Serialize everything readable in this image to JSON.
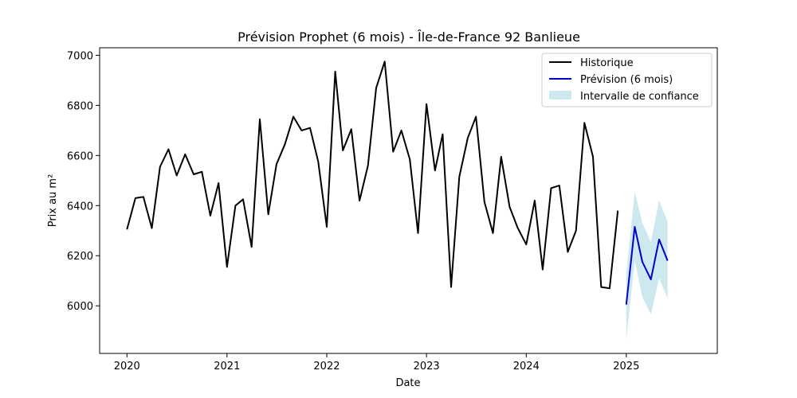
{
  "chart_data": {
    "type": "line",
    "title": "Prévision Prophet (6 mois) - Île-de-France 92 Banlieue",
    "xlabel": "Date",
    "ylabel": "Prix au m²",
    "xlim": [
      "2019-09-23",
      "2025-11-30"
    ],
    "ylim": [
      5810,
      7030
    ],
    "x_ticks": [
      "2020",
      "2021",
      "2022",
      "2023",
      "2024",
      "2025"
    ],
    "y_ticks": [
      6000,
      6200,
      6400,
      6600,
      6800,
      7000
    ],
    "grid": false,
    "legend_position": "top-right",
    "legend": [
      "Historique",
      "Prévision (6 mois)",
      "Intervalle de confiance"
    ],
    "colors": {
      "historique": "#000000",
      "prevision": "#0000cc",
      "intervalle": "#add8e6"
    },
    "series": [
      {
        "name": "Historique",
        "x": [
          "2020-01-01",
          "2020-02-01",
          "2020-03-01",
          "2020-04-01",
          "2020-05-01",
          "2020-06-01",
          "2020-07-01",
          "2020-08-01",
          "2020-09-01",
          "2020-10-01",
          "2020-11-01",
          "2020-12-01",
          "2021-01-01",
          "2021-02-01",
          "2021-03-01",
          "2021-04-01",
          "2021-05-01",
          "2021-06-01",
          "2021-07-01",
          "2021-08-01",
          "2021-09-01",
          "2021-10-01",
          "2021-11-01",
          "2021-12-01",
          "2022-01-01",
          "2022-02-01",
          "2022-03-01",
          "2022-04-01",
          "2022-05-01",
          "2022-06-01",
          "2022-07-01",
          "2022-08-01",
          "2022-09-01",
          "2022-10-01",
          "2022-11-01",
          "2022-12-01",
          "2023-01-01",
          "2023-02-01",
          "2023-03-01",
          "2023-04-01",
          "2023-05-01",
          "2023-06-01",
          "2023-07-01",
          "2023-08-01",
          "2023-09-01",
          "2023-10-01",
          "2023-11-01",
          "2023-12-01",
          "2024-01-01",
          "2024-02-01",
          "2024-03-01",
          "2024-04-01",
          "2024-05-01",
          "2024-06-01",
          "2024-07-01",
          "2024-08-01",
          "2024-09-01",
          "2024-10-01",
          "2024-11-01",
          "2024-12-01"
        ],
        "values": [
          6305,
          6430,
          6435,
          6310,
          6555,
          6625,
          6520,
          6605,
          6525,
          6535,
          6360,
          6490,
          6155,
          6400,
          6425,
          6235,
          6745,
          6365,
          6565,
          6645,
          6755,
          6700,
          6710,
          6575,
          6315,
          6935,
          6620,
          6705,
          6420,
          6560,
          6870,
          6975,
          6615,
          6700,
          6585,
          6290,
          6805,
          6540,
          6685,
          6075,
          6515,
          6670,
          6755,
          6415,
          6290,
          6595,
          6395,
          6310,
          6245,
          6420,
          6145,
          6470,
          6480,
          6215,
          6300,
          6730,
          6595,
          6075,
          6070,
          6380
        ]
      },
      {
        "name": "Prévision (6 mois)",
        "x": [
          "2025-01-01",
          "2025-02-01",
          "2025-03-01",
          "2025-04-01",
          "2025-05-01",
          "2025-06-01"
        ],
        "values": [
          6005,
          6315,
          6175,
          6105,
          6265,
          6180
        ]
      },
      {
        "name": "Intervalle de confiance",
        "x": [
          "2025-01-01",
          "2025-02-01",
          "2025-03-01",
          "2025-04-01",
          "2025-05-01",
          "2025-06-01"
        ],
        "lower": [
          5865,
          6180,
          6035,
          5965,
          6110,
          6030
        ],
        "upper": [
          6130,
          6455,
          6330,
          6255,
          6420,
          6335
        ]
      }
    ]
  }
}
